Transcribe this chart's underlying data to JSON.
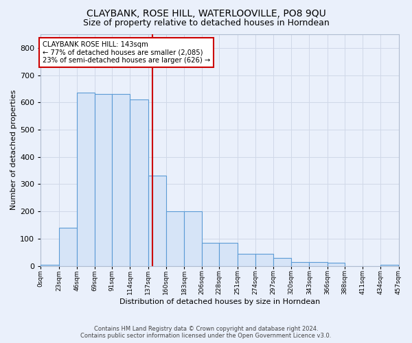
{
  "title": "CLAYBANK, ROSE HILL, WATERLOOVILLE, PO8 9QU",
  "subtitle": "Size of property relative to detached houses in Horndean",
  "xlabel": "Distribution of detached houses by size in Horndean",
  "ylabel": "Number of detached properties",
  "footer_line1": "Contains HM Land Registry data © Crown copyright and database right 2024.",
  "footer_line2": "Contains public sector information licensed under the Open Government Licence v3.0.",
  "bin_edges": [
    0,
    23,
    46,
    69,
    91,
    114,
    137,
    160,
    183,
    206,
    228,
    251,
    274,
    297,
    320,
    343,
    366,
    388,
    411,
    434,
    457
  ],
  "bar_heights": [
    5,
    140,
    635,
    630,
    630,
    610,
    330,
    200,
    200,
    85,
    85,
    45,
    45,
    28,
    15,
    15,
    12,
    0,
    0,
    5
  ],
  "bar_color": "#d6e4f7",
  "bar_edge_color": "#5b9bd5",
  "vline_x": 143,
  "vline_color": "#cc0000",
  "annotation_text": "CLAYBANK ROSE HILL: 143sqm\n← 77% of detached houses are smaller (2,085)\n23% of semi-detached houses are larger (626) →",
  "annotation_box_color": "#ffffff",
  "annotation_box_edge_color": "#cc0000",
  "ylim": [
    0,
    850
  ],
  "yticks": [
    0,
    100,
    200,
    300,
    400,
    500,
    600,
    700,
    800
  ],
  "tick_labels": [
    "0sqm",
    "23sqm",
    "46sqm",
    "69sqm",
    "91sqm",
    "114sqm",
    "137sqm",
    "160sqm",
    "183sqm",
    "206sqm",
    "228sqm",
    "251sqm",
    "274sqm",
    "297sqm",
    "320sqm",
    "343sqm",
    "366sqm",
    "388sqm",
    "411sqm",
    "434sqm",
    "457sqm"
  ],
  "grid_color": "#d0d8e8",
  "background_color": "#eaf0fb"
}
